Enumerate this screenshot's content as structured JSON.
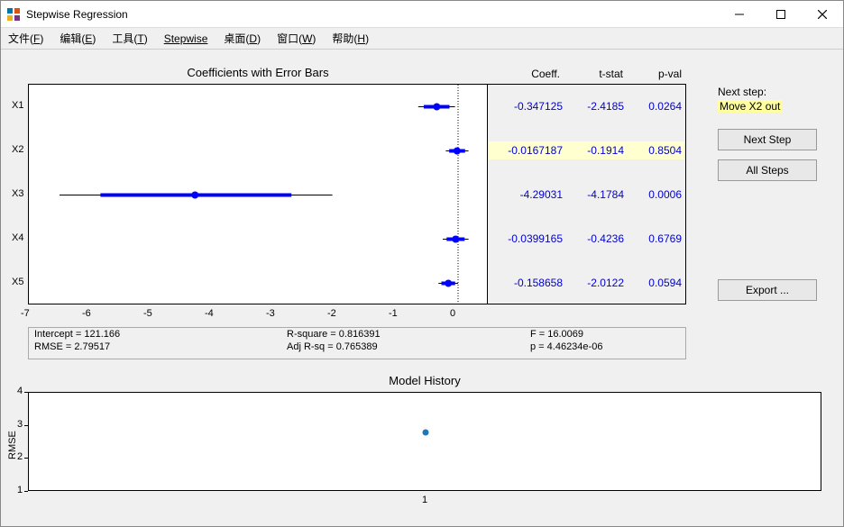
{
  "window": {
    "title": "Stepwise Regression"
  },
  "menu": {
    "file": "文件(F)",
    "edit": "编辑(E)",
    "tools": "工具(T)",
    "stepwise": "Stepwise",
    "desktop": "桌面(D)",
    "window": "窗口(W)",
    "help": "帮助(H)"
  },
  "coef_chart": {
    "title": "Coefficients with Error Bars",
    "xlim": [
      -7,
      0.5
    ],
    "xticks": [
      -7,
      -6,
      -5,
      -4,
      -3,
      -2,
      -1,
      0
    ],
    "variables": [
      {
        "name": "X1",
        "coef": -0.347125,
        "ci": [
          -0.65,
          -0.05
        ],
        "tstat": "-2.4185",
        "pval": "0.0264"
      },
      {
        "name": "X2",
        "coef": -0.0167187,
        "ci": [
          -0.2,
          0.17
        ],
        "tstat": "-0.1914",
        "pval": "0.8504",
        "highlight": true
      },
      {
        "name": "X3",
        "coef": -4.29031,
        "ci": [
          -6.5,
          -2.05
        ],
        "tstat": "-4.1784",
        "pval": "0.0006"
      },
      {
        "name": "X4",
        "coef": -0.0399165,
        "ci": [
          -0.25,
          0.17
        ],
        "tstat": "-0.4236",
        "pval": "0.6769"
      },
      {
        "name": "X5",
        "coef": -0.158658,
        "ci": [
          -0.32,
          0.0
        ],
        "tstat": "-2.0122",
        "pval": "0.0594"
      }
    ],
    "headers": {
      "coef": "Coeff.",
      "tstat": "t-stat",
      "pval": "p-val"
    },
    "colors": {
      "line": "#0000ff",
      "marker": "#0000ff",
      "grid": "#000000",
      "zero_line": "#000000"
    }
  },
  "summary": {
    "intercept_label": "Intercept = 121.166",
    "rmse_label": "RMSE = 2.79517",
    "rsq_label": "R-square = 0.816391",
    "adjrsq_label": "Adj R-sq = 0.765389",
    "f_label": "F = 16.0069",
    "p_label": "p = 4.46234e-06"
  },
  "history_chart": {
    "title": "Model History",
    "ylabel": "RMSE",
    "ylim": [
      1,
      4
    ],
    "yticks": [
      1,
      2,
      3,
      4
    ],
    "xticks": [
      1
    ],
    "points": [
      {
        "x": 1,
        "y": 2.8
      }
    ],
    "point_color": "#1f77b4",
    "background": "#ffffff"
  },
  "side": {
    "next_step_label": "Next step:",
    "action": "Move X2 out",
    "btn_next": "Next Step",
    "btn_all": "All Steps",
    "btn_export": "Export ..."
  }
}
